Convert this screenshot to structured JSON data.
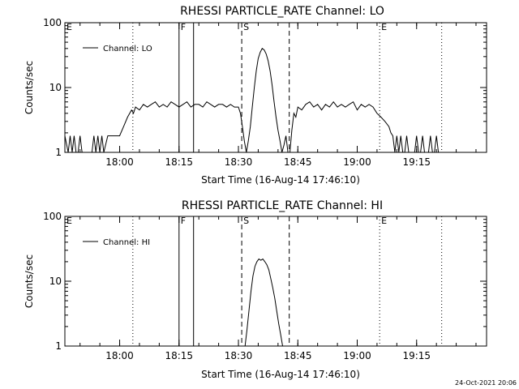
{
  "timestamp": "24-Oct-2021 20:06",
  "chart_data": [
    {
      "type": "line",
      "title": "RHESSI PARTICLE_RATE Channel: LO",
      "xlabel": "Start Time (16-Aug-14 17:46:10)",
      "ylabel": "Counts/sec",
      "y_scale": "log",
      "ylim": [
        1,
        100
      ],
      "y_ticks": [
        1,
        10,
        100
      ],
      "y_tick_labels": [
        "1",
        "10",
        "100"
      ],
      "xlim": [
        "17:46:10",
        "19:32:40"
      ],
      "x_ticks": [
        "18:00",
        "18:15",
        "18:30",
        "18:45",
        "19:00",
        "19:15"
      ],
      "legend": {
        "entry": "Channel: LO",
        "position": "top-left"
      },
      "markers": [
        {
          "label": "E",
          "time": "17:46:10",
          "style": "dotted"
        },
        {
          "label": "",
          "time": "18:03:20",
          "style": "dotted"
        },
        {
          "label": "F",
          "time": "18:15:00",
          "style": "solid"
        },
        {
          "label": "",
          "time": "18:18:40",
          "style": "solid"
        },
        {
          "label": "S",
          "time": "18:30:50",
          "style": "dashed"
        },
        {
          "label": "",
          "time": "18:42:50",
          "style": "dashed"
        },
        {
          "label": "E",
          "time": "19:05:40",
          "style": "dotted"
        },
        {
          "label": "",
          "time": "19:21:20",
          "style": "dotted"
        }
      ],
      "series": [
        {
          "name": "Channel: LO",
          "x": [
            "17:46:10",
            "17:47:00",
            "17:47:30",
            "17:48:00",
            "17:48:30",
            "17:49:00",
            "17:49:30",
            "17:50:00",
            "17:50:30",
            "17:51:00",
            "17:51:30",
            "17:52:00",
            "17:52:30",
            "17:53:00",
            "17:53:30",
            "17:54:00",
            "17:54:30",
            "17:55:00",
            "17:55:30",
            "17:56:00",
            "17:57:00",
            "17:57:30",
            "17:58:30",
            "18:00:00",
            "18:01:00",
            "18:02:00",
            "18:03:00",
            "18:03:30",
            "18:04:00",
            "18:05:00",
            "18:06:00",
            "18:07:00",
            "18:08:00",
            "18:09:00",
            "18:10:00",
            "18:11:00",
            "18:12:00",
            "18:13:00",
            "18:14:00",
            "18:15:00",
            "18:16:00",
            "18:17:00",
            "18:18:00",
            "18:19:00",
            "18:20:00",
            "18:21:00",
            "18:22:00",
            "18:23:00",
            "18:24:00",
            "18:25:00",
            "18:26:00",
            "18:27:00",
            "18:28:00",
            "18:29:00",
            "18:30:00",
            "18:30:30",
            "18:31:00",
            "18:31:30",
            "18:32:00",
            "18:32:30",
            "18:33:00",
            "18:33:30",
            "18:34:00",
            "18:34:30",
            "18:35:00",
            "18:35:30",
            "18:36:00",
            "18:36:30",
            "18:37:00",
            "18:37:30",
            "18:38:00",
            "18:38:30",
            "18:39:00",
            "18:39:30",
            "18:40:00",
            "18:40:30",
            "18:41:00",
            "18:41:30",
            "18:42:00",
            "18:42:30",
            "18:43:00",
            "18:43:30",
            "18:44:00",
            "18:44:30",
            "18:45:00",
            "18:46:00",
            "18:47:00",
            "18:48:00",
            "18:49:00",
            "18:50:00",
            "18:51:00",
            "18:52:00",
            "18:53:00",
            "18:54:00",
            "18:55:00",
            "18:56:00",
            "18:57:00",
            "18:58:00",
            "18:59:00",
            "19:00:00",
            "19:01:00",
            "19:02:00",
            "19:03:00",
            "19:04:00",
            "19:05:00",
            "19:06:00",
            "19:07:00",
            "19:08:00",
            "19:08:30",
            "19:09:00",
            "19:09:30",
            "19:10:00",
            "19:10:30",
            "19:11:00",
            "19:11:30",
            "19:12:00",
            "19:12:30",
            "19:13:00",
            "19:13:30",
            "19:14:00",
            "19:14:30",
            "19:15:00",
            "19:15:30",
            "19:16:00",
            "19:16:30",
            "19:17:00",
            "19:17:30",
            "19:18:00",
            "19:18:30",
            "19:19:00",
            "19:19:30",
            "19:20:00",
            "19:20:30",
            "19:21:00"
          ],
          "y": [
            1.8,
            1,
            1.8,
            1,
            1.8,
            1,
            1,
            1.8,
            1,
            1,
            1,
            1,
            1,
            1,
            1.8,
            1,
            1.8,
            1,
            1.8,
            1,
            1.8,
            1.8,
            1.8,
            1.8,
            2.5,
            3.5,
            4.5,
            4.0,
            5.0,
            4.5,
            5.5,
            5.0,
            5.5,
            6.0,
            5.0,
            5.5,
            5.0,
            6.0,
            5.5,
            5.0,
            5.5,
            6.0,
            5.0,
            5.5,
            5.5,
            5.0,
            6.0,
            5.5,
            5.0,
            5.5,
            5.5,
            5.0,
            5.5,
            5.0,
            5.0,
            4.0,
            2.5,
            1.5,
            1,
            1.5,
            2.5,
            5,
            10,
            18,
            28,
            35,
            40,
            38,
            33,
            26,
            18,
            11,
            6,
            3.5,
            2.2,
            1.5,
            1,
            1.3,
            1.8,
            1,
            1,
            2.2,
            4.0,
            3.5,
            5.0,
            4.5,
            5.5,
            6.0,
            5.0,
            5.5,
            4.5,
            5.5,
            5.0,
            6.0,
            5.0,
            5.5,
            5.0,
            5.5,
            6.0,
            4.5,
            5.5,
            5.0,
            5.5,
            5.0,
            4.0,
            3.5,
            3.0,
            2.5,
            2.0,
            1.8,
            1,
            1.8,
            1,
            1.8,
            1,
            1,
            1.8,
            1,
            1,
            1,
            1,
            1.8,
            1,
            1,
            1.8,
            1,
            1,
            1,
            1.8,
            1,
            1,
            1.8,
            1,
            1
          ]
        }
      ]
    },
    {
      "type": "line",
      "title": "RHESSI PARTICLE_RATE Channel: HI",
      "xlabel": "Start Time (16-Aug-14 17:46:10)",
      "ylabel": "Counts/sec",
      "y_scale": "log",
      "ylim": [
        1,
        100
      ],
      "y_ticks": [
        1,
        10,
        100
      ],
      "y_tick_labels": [
        "1",
        "10",
        "100"
      ],
      "xlim": [
        "17:46:10",
        "19:32:40"
      ],
      "x_ticks": [
        "18:00",
        "18:15",
        "18:30",
        "18:45",
        "19:00",
        "19:15"
      ],
      "legend": {
        "entry": "Channel: HI",
        "position": "top-left"
      },
      "markers": [
        {
          "label": "E",
          "time": "17:46:10",
          "style": "dotted"
        },
        {
          "label": "",
          "time": "18:03:20",
          "style": "dotted"
        },
        {
          "label": "F",
          "time": "18:15:00",
          "style": "solid"
        },
        {
          "label": "",
          "time": "18:18:40",
          "style": "solid"
        },
        {
          "label": "S",
          "time": "18:30:50",
          "style": "dashed"
        },
        {
          "label": "",
          "time": "18:42:50",
          "style": "dashed"
        },
        {
          "label": "E",
          "time": "19:05:40",
          "style": "dotted"
        },
        {
          "label": "",
          "time": "19:21:20",
          "style": "dotted"
        }
      ],
      "series": [
        {
          "name": "Channel: HI",
          "x": [
            "18:31:40",
            "18:32:10",
            "18:32:40",
            "18:33:10",
            "18:33:40",
            "18:34:10",
            "18:34:40",
            "18:35:10",
            "18:35:40",
            "18:36:10",
            "18:36:40",
            "18:37:10",
            "18:37:40",
            "18:38:10",
            "18:38:40",
            "18:39:10",
            "18:39:40",
            "18:40:10",
            "18:40:40",
            "18:41:10"
          ],
          "y": [
            1,
            1.8,
            3.5,
            7,
            12,
            17,
            20,
            22,
            21,
            22,
            20,
            18,
            15,
            11,
            8,
            5.5,
            3.5,
            2.2,
            1.5,
            1
          ]
        }
      ]
    }
  ]
}
